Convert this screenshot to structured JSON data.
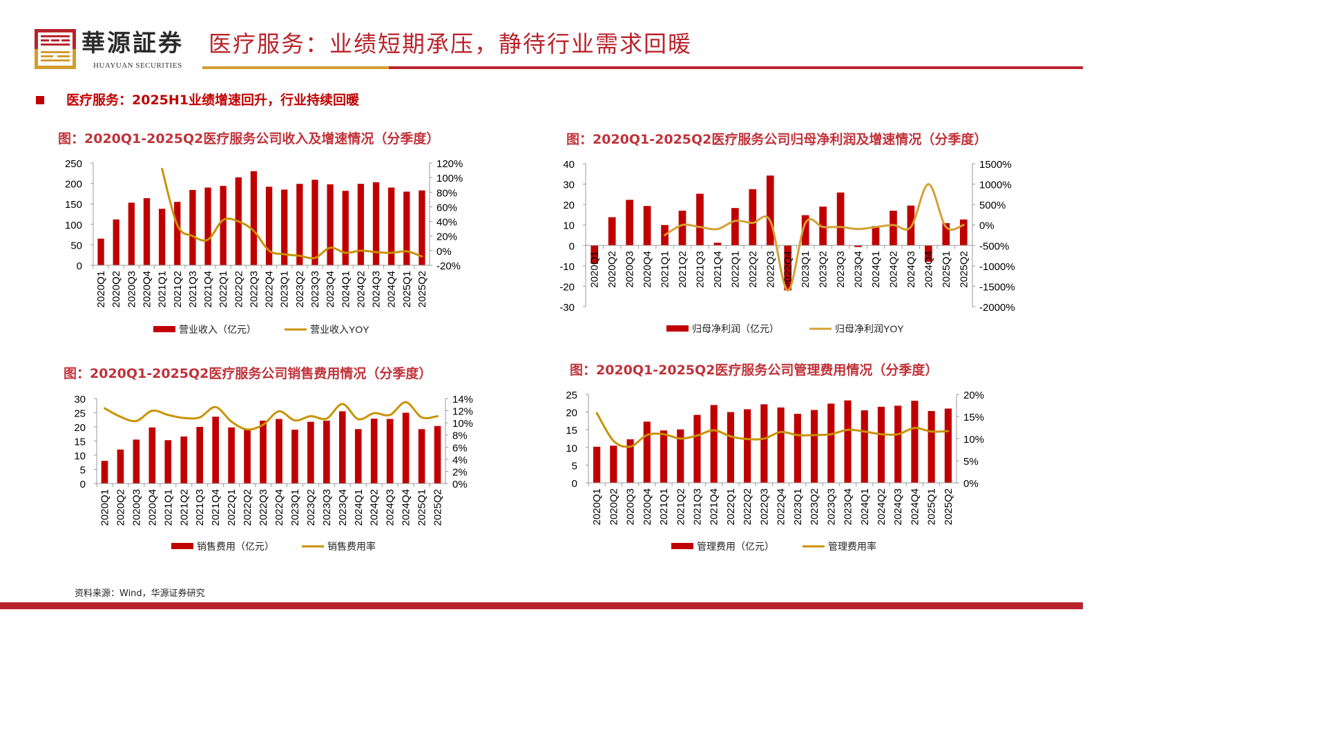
{
  "header": {
    "logo_cn": "華源証券",
    "logo_en": "HUAYUAN SECURITIES",
    "title": "医疗服务：业绩短期承压，静待行业需求回暖",
    "colors": {
      "red": "#b8242c",
      "gold": "#d19d2e"
    }
  },
  "subtitle": "医疗服务：2025H1业绩增速回升，行业持续回暖",
  "source": "资料来源：Wind，华源证券研究",
  "chart_data": [
    {
      "type": "bar+line",
      "title": "图：2020Q1-2025Q2医疗服务公司收入及增速情况（分季度）",
      "categories": [
        "2020Q1",
        "2020Q2",
        "2020Q3",
        "2020Q4",
        "2021Q1",
        "2021Q2",
        "2021Q3",
        "2021Q4",
        "2022Q1",
        "2022Q2",
        "2022Q3",
        "2022Q4",
        "2023Q1",
        "2023Q2",
        "2023Q3",
        "2023Q4",
        "2024Q1",
        "2024Q2",
        "2024Q3",
        "2024Q4",
        "2025Q1",
        "2025Q2"
      ],
      "bar": {
        "name": "营业收入（亿元）",
        "color": "#c00000",
        "values": [
          65,
          112,
          153,
          164,
          138,
          155,
          184,
          190,
          194,
          215,
          230,
          192,
          185,
          199,
          209,
          198,
          182,
          199,
          203,
          190,
          180,
          183
        ]
      },
      "line": {
        "name": "营业收入YOY",
        "color": "#c89200",
        "unit": "%",
        "values": [
          null,
          null,
          null,
          null,
          112,
          35,
          20,
          15,
          42,
          40,
          27,
          0,
          -5,
          -7,
          -10,
          4,
          -3,
          0,
          -2,
          -3,
          -1,
          -8
        ]
      },
      "ylim": [
        0,
        250
      ],
      "yticks": [
        0,
        50,
        100,
        150,
        200,
        250
      ],
      "y2lim": [
        -20,
        120
      ],
      "y2ticks": [
        -20,
        0,
        20,
        40,
        60,
        80,
        100,
        120
      ]
    },
    {
      "type": "bar+line",
      "title": "图：2020Q1-2025Q2医疗服务公司归母净利润及增速情况（分季度）",
      "categories": [
        "2020Q1",
        "2020Q2",
        "2020Q3",
        "2020Q4",
        "2021Q1",
        "2021Q2",
        "2021Q3",
        "2021Q4",
        "2022Q1",
        "2022Q2",
        "2022Q3",
        "2022Q4",
        "2023Q1",
        "2023Q2",
        "2023Q3",
        "2023Q4",
        "2024Q1",
        "2024Q2",
        "2024Q3",
        "2024Q4",
        "2025Q1",
        "2025Q2"
      ],
      "bar": {
        "name": "归母净利润（亿元）",
        "color": "#c00000",
        "values": [
          -9,
          13.8,
          22.3,
          19.3,
          10,
          17,
          25.3,
          1.3,
          18.3,
          27.5,
          34.2,
          -22,
          14.8,
          19,
          25.9,
          -0.8,
          9.5,
          17,
          19.5,
          -8,
          10.9,
          12.7
        ]
      },
      "line": {
        "name": "归母净利润YOY",
        "color": "#d4a032",
        "unit": "%",
        "values": [
          null,
          null,
          null,
          null,
          -250,
          0,
          -50,
          -100,
          100,
          50,
          100,
          -1600,
          50,
          -50,
          -50,
          -100,
          -50,
          0,
          -50,
          1000,
          -50,
          0
        ]
      },
      "ylim": [
        -30,
        40
      ],
      "yticks": [
        -30,
        -20,
        -10,
        0,
        10,
        20,
        30,
        40
      ],
      "y2lim": [
        -2000,
        1500
      ],
      "y2ticks": [
        -2000,
        -1500,
        -1000,
        -500,
        0,
        500,
        1000,
        1500
      ]
    },
    {
      "type": "bar+line",
      "title": "图：2020Q1-2025Q2医疗服务公司销售费用情况（分季度）",
      "categories": [
        "2020Q1",
        "2020Q2",
        "2020Q3",
        "2020Q4",
        "2021Q1",
        "2021Q2",
        "2021Q3",
        "2021Q4",
        "2022Q1",
        "2022Q2",
        "2022Q3",
        "2022Q4",
        "2023Q1",
        "2023Q2",
        "2023Q3",
        "2023Q4",
        "2024Q1",
        "2024Q2",
        "2024Q3",
        "2024Q4",
        "2025Q1",
        "2025Q2"
      ],
      "bar": {
        "name": "销售费用（亿元）",
        "color": "#c00000",
        "values": [
          8,
          12,
          15.5,
          19.8,
          15.3,
          16.6,
          20,
          23.6,
          19.8,
          19,
          22.2,
          22.8,
          19,
          21.8,
          22.2,
          25.5,
          19.2,
          22.9,
          22.8,
          25,
          19.2,
          20.3
        ]
      },
      "line": {
        "name": "销售费用率",
        "color": "#c89200",
        "unit": "%",
        "values": [
          12.4,
          11,
          10.3,
          12,
          11.3,
          10.8,
          10.9,
          12.6,
          10.2,
          8.9,
          9.7,
          11.9,
          10.4,
          11.1,
          10.7,
          13.1,
          10.6,
          11.6,
          11.3,
          13.4,
          10.9,
          11.1
        ]
      },
      "ylim": [
        0,
        30
      ],
      "yticks": [
        0,
        5,
        10,
        15,
        20,
        25,
        30
      ],
      "y2lim": [
        0,
        14
      ],
      "y2ticks": [
        0,
        2,
        4,
        6,
        8,
        10,
        12,
        14
      ]
    },
    {
      "type": "bar+line",
      "title": "图：2020Q1-2025Q2医疗服务公司管理费用情况（分季度）",
      "categories": [
        "2020Q1",
        "2020Q2",
        "2020Q3",
        "2020Q4",
        "2021Q1",
        "2021Q2",
        "2021Q3",
        "2021Q4",
        "2022Q1",
        "2022Q2",
        "2022Q3",
        "2022Q4",
        "2023Q1",
        "2023Q2",
        "2023Q3",
        "2023Q4",
        "2024Q1",
        "2024Q2",
        "2024Q3",
        "2024Q4",
        "2025Q1",
        "2025Q2"
      ],
      "bar": {
        "name": "管理费用（亿元）",
        "color": "#c00000",
        "values": [
          10.2,
          10.5,
          12.3,
          17.3,
          14.8,
          15.1,
          19.2,
          22,
          20,
          20.8,
          22.2,
          21.3,
          19.5,
          20.6,
          22.4,
          23.3,
          20.5,
          21.5,
          21.8,
          23.2,
          20.3,
          21
        ]
      },
      "line": {
        "name": "管理费用率",
        "color": "#c89200",
        "unit": "%",
        "values": [
          15.8,
          9.5,
          8.2,
          10.8,
          11,
          10,
          10.7,
          11.9,
          10.5,
          9.9,
          10,
          11.5,
          10.8,
          10.8,
          11,
          12,
          11.6,
          11,
          11,
          12.4,
          11.6,
          11.7
        ]
      },
      "ylim": [
        0,
        25
      ],
      "yticks": [
        0,
        5,
        10,
        15,
        20,
        25
      ],
      "y2lim": [
        0,
        20
      ],
      "y2ticks": [
        0,
        5,
        10,
        15,
        20
      ]
    }
  ]
}
